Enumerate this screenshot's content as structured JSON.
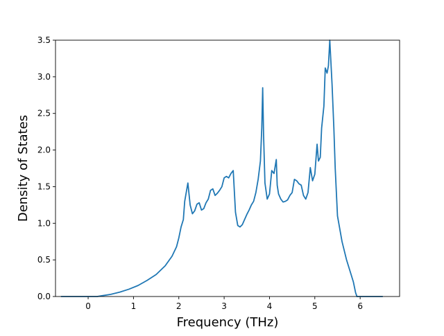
{
  "chart_data": {
    "type": "line",
    "title": "",
    "xlabel": "Frequency (THz)",
    "ylabel": "Density of States",
    "xlim": [
      -0.72,
      6.87
    ],
    "ylim": [
      0,
      3.5
    ],
    "grid": false,
    "legend": "none",
    "color": "#1f77b4",
    "x_ticks": [
      0,
      1,
      2,
      3,
      4,
      5,
      6
    ],
    "y_ticks": [
      0.0,
      0.5,
      1.0,
      1.5,
      2.0,
      2.5,
      3.0,
      3.5
    ],
    "x_tick_labels": [
      "0",
      "1",
      "2",
      "3",
      "4",
      "5",
      "6"
    ],
    "y_tick_labels": [
      "0.0",
      "0.5",
      "1.0",
      "1.5",
      "2.0",
      "2.5",
      "3.0",
      "3.5"
    ],
    "series": [
      {
        "x": [
          -0.6,
          -0.3,
          0.0,
          0.2,
          0.3,
          0.5,
          0.7,
          0.9,
          1.1,
          1.3,
          1.5,
          1.7,
          1.85,
          1.95,
          2.0,
          2.05,
          2.1,
          2.13,
          2.2,
          2.25,
          2.3,
          2.35,
          2.4,
          2.45,
          2.5,
          2.55,
          2.6,
          2.65,
          2.7,
          2.75,
          2.8,
          2.85,
          2.9,
          2.95,
          3.0,
          3.05,
          3.1,
          3.15,
          3.2,
          3.25,
          3.3,
          3.35,
          3.4,
          3.45,
          3.5,
          3.55,
          3.6,
          3.65,
          3.7,
          3.75,
          3.8,
          3.83,
          3.85,
          3.87,
          3.9,
          3.95,
          4.0,
          4.05,
          4.1,
          4.15,
          4.17,
          4.2,
          4.25,
          4.3,
          4.35,
          4.4,
          4.45,
          4.5,
          4.55,
          4.6,
          4.65,
          4.7,
          4.75,
          4.8,
          4.85,
          4.9,
          4.95,
          5.0,
          5.05,
          5.08,
          5.12,
          5.15,
          5.2,
          5.23,
          5.27,
          5.3,
          5.33,
          5.38,
          5.42,
          5.45,
          5.5,
          5.6,
          5.7,
          5.8,
          5.85,
          5.9,
          5.93,
          6.0,
          6.1,
          6.5
        ],
        "y": [
          0.0,
          0.0,
          0.0,
          0.0,
          0.01,
          0.03,
          0.06,
          0.1,
          0.15,
          0.22,
          0.3,
          0.42,
          0.55,
          0.68,
          0.8,
          0.95,
          1.05,
          1.3,
          1.55,
          1.25,
          1.13,
          1.17,
          1.26,
          1.28,
          1.18,
          1.2,
          1.28,
          1.33,
          1.45,
          1.47,
          1.38,
          1.41,
          1.45,
          1.5,
          1.62,
          1.64,
          1.62,
          1.68,
          1.72,
          1.15,
          0.97,
          0.95,
          0.98,
          1.05,
          1.12,
          1.18,
          1.25,
          1.3,
          1.42,
          1.6,
          1.85,
          2.3,
          2.85,
          2.2,
          1.55,
          1.33,
          1.4,
          1.72,
          1.68,
          1.87,
          1.52,
          1.4,
          1.33,
          1.29,
          1.3,
          1.32,
          1.38,
          1.42,
          1.6,
          1.58,
          1.54,
          1.52,
          1.38,
          1.33,
          1.42,
          1.76,
          1.58,
          1.67,
          2.08,
          1.85,
          1.9,
          2.3,
          2.6,
          3.12,
          3.05,
          3.15,
          3.5,
          2.9,
          2.3,
          1.75,
          1.1,
          0.75,
          0.5,
          0.3,
          0.2,
          0.05,
          0.0,
          0.0,
          0.0,
          0.0
        ]
      }
    ]
  }
}
